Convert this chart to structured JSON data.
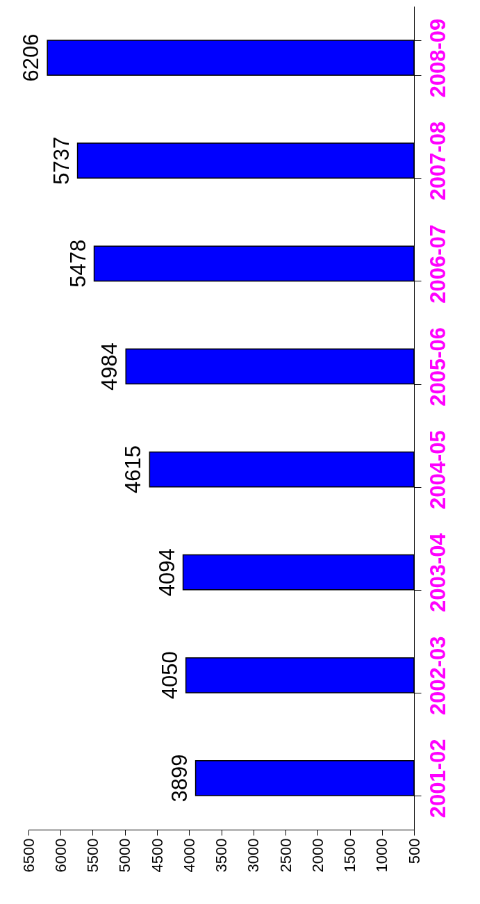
{
  "chart_data": {
    "type": "bar",
    "orientation": "horizontal",
    "categories": [
      "2008-09",
      "2007-08",
      "2006-07",
      "2005-06",
      "2004-05",
      "2003-04",
      "2002-03",
      "2001-02"
    ],
    "values": [
      6206,
      5737,
      5478,
      4984,
      4615,
      4094,
      4050,
      3899
    ],
    "color": "#0000ff",
    "data_labels": true,
    "grid": false,
    "xlim": [
      6500,
      500
    ],
    "xticks": [
      6500,
      6000,
      5500,
      5000,
      4500,
      4000,
      3500,
      3000,
      2500,
      2000,
      1500,
      1000,
      500
    ]
  }
}
